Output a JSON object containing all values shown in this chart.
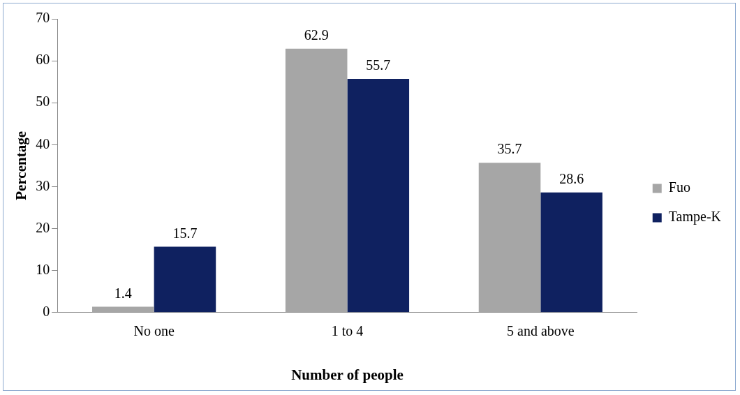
{
  "chart_data": {
    "type": "bar",
    "xlabel": "Number of people",
    "ylabel": "Percentage",
    "categories": [
      "No one",
      "1 to 4",
      "5 and above"
    ],
    "series": [
      {
        "name": "Fuo",
        "color": "#a6a6a6",
        "values": [
          1.4,
          62.9,
          35.7
        ]
      },
      {
        "name": "Tampe-K",
        "color": "#0f2160",
        "values": [
          15.7,
          55.7,
          28.6
        ]
      }
    ],
    "ylim": [
      0,
      70
    ],
    "yticks": [
      0,
      10,
      20,
      30,
      40,
      50,
      60,
      70
    ],
    "grid": false,
    "legend": "right",
    "data_labels": true
  }
}
